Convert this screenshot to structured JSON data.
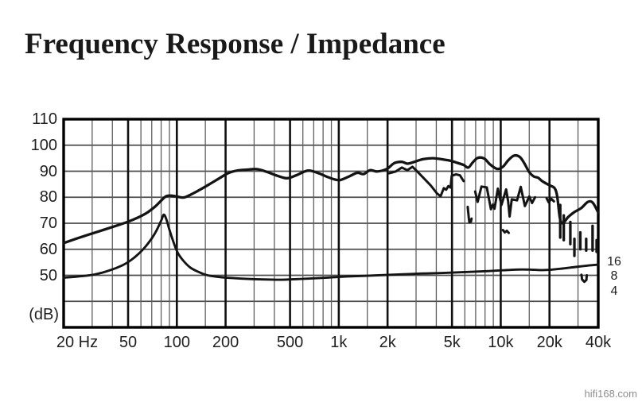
{
  "title": "Frequency Response / Impedance",
  "watermark": "hifi168.com",
  "chart_data": {
    "type": "line",
    "title": "Frequency Response / Impedance",
    "x_axis": {
      "scale": "log",
      "unit": "Hz",
      "min": 20,
      "max": 40000,
      "major_ticks": [
        {
          "value": 20,
          "label": "20 Hz"
        },
        {
          "value": 50,
          "label": "50"
        },
        {
          "value": 100,
          "label": "100"
        },
        {
          "value": 200,
          "label": "200"
        },
        {
          "value": 500,
          "label": "500"
        },
        {
          "value": 1000,
          "label": "1k"
        },
        {
          "value": 2000,
          "label": "2k"
        },
        {
          "value": 5000,
          "label": "5k"
        },
        {
          "value": 10000,
          "label": "10k"
        },
        {
          "value": 20000,
          "label": "20k"
        },
        {
          "value": 40000,
          "label": "40k"
        }
      ],
      "minor_gridlines": [
        30,
        40,
        60,
        70,
        80,
        90,
        150,
        300,
        400,
        600,
        700,
        800,
        900,
        1500,
        3000,
        4000,
        6000,
        7000,
        8000,
        9000,
        15000,
        30000
      ]
    },
    "y_axis": {
      "label": "(dB)",
      "min": 30,
      "max": 110,
      "gridline_step": 10,
      "labeled_ticks": [
        110,
        100,
        90,
        80,
        70,
        60,
        50
      ]
    },
    "y2_axis": {
      "unit": "ohms",
      "ticks": [
        {
          "label": "16",
          "db_equiv": 55.0
        },
        {
          "label": "8",
          "db_equiv": 49.4
        },
        {
          "label": "4",
          "db_equiv": 43.8
        }
      ]
    },
    "series": [
      {
        "name": "frequency_response",
        "style": "smooth",
        "points": [
          [
            20,
            62.4
          ],
          [
            24,
            64.1
          ],
          [
            29,
            65.8
          ],
          [
            35,
            67.4
          ],
          [
            42,
            69.0
          ],
          [
            50,
            70.6
          ],
          [
            58,
            72.3
          ],
          [
            66,
            74.2
          ],
          [
            74,
            76.6
          ],
          [
            80,
            78.7
          ],
          [
            86,
            80.4
          ],
          [
            93,
            80.6
          ],
          [
            101,
            80.2
          ],
          [
            110,
            79.9
          ],
          [
            120,
            80.8
          ],
          [
            138,
            82.8
          ],
          [
            158,
            84.9
          ],
          [
            182,
            87.2
          ],
          [
            208,
            89.3
          ],
          [
            238,
            90.3
          ],
          [
            272,
            90.6
          ],
          [
            312,
            90.8
          ],
          [
            358,
            89.8
          ],
          [
            420,
            88.2
          ],
          [
            480,
            87.3
          ],
          [
            545,
            88.4
          ],
          [
            615,
            89.9
          ],
          [
            665,
            90.2
          ],
          [
            760,
            89.1
          ],
          [
            860,
            87.7
          ],
          [
            950,
            86.8
          ],
          [
            1020,
            86.6
          ],
          [
            1150,
            87.9
          ],
          [
            1300,
            89.4
          ],
          [
            1420,
            88.9
          ],
          [
            1560,
            90.4
          ],
          [
            1700,
            89.9
          ],
          [
            1850,
            90.2
          ],
          [
            2000,
            91.0
          ],
          [
            2200,
            93.1
          ],
          [
            2450,
            93.6
          ],
          [
            2650,
            92.9
          ],
          [
            2900,
            93.5
          ],
          [
            3300,
            94.6
          ],
          [
            3800,
            95.0
          ],
          [
            4300,
            94.6
          ],
          [
            4900,
            94.0
          ],
          [
            5400,
            93.2
          ],
          [
            5900,
            92.4
          ],
          [
            6300,
            91.4
          ],
          [
            6700,
            93.3
          ],
          [
            7200,
            95.1
          ],
          [
            7900,
            94.9
          ],
          [
            8600,
            92.6
          ],
          [
            9500,
            90.9
          ],
          [
            10300,
            91.7
          ],
          [
            11200,
            94.4
          ],
          [
            12100,
            96.0
          ],
          [
            13100,
            95.5
          ],
          [
            14000,
            93.0
          ],
          [
            15000,
            89.6
          ],
          [
            16000,
            88.0
          ],
          [
            17000,
            87.5
          ],
          [
            18000,
            86.2
          ],
          [
            19200,
            85.2
          ],
          [
            20500,
            84.3
          ],
          [
            21500,
            83.5
          ],
          [
            22300,
            80.5
          ],
          [
            23200,
            72.0
          ],
          [
            24200,
            70.0
          ],
          [
            26000,
            72.3
          ],
          [
            28500,
            74.3
          ],
          [
            31500,
            75.9
          ],
          [
            34500,
            78.2
          ],
          [
            37000,
            77.9
          ],
          [
            40000,
            74.1
          ]
        ]
      },
      {
        "name": "response_secondary",
        "style": "jagged",
        "segments": [
          [
            [
              2050,
              89.2
            ],
            [
              2250,
              89.9
            ],
            [
              2450,
              91.4
            ],
            [
              2650,
              90.4
            ],
            [
              2850,
              91.7
            ],
            [
              3050,
              89.9
            ],
            [
              3350,
              87.3
            ],
            [
              3700,
              84.5
            ],
            [
              4050,
              81.4
            ],
            [
              4250,
              80.4
            ],
            [
              4450,
              83.5
            ],
            [
              4600,
              82.9
            ],
            [
              4750,
              84.3
            ],
            [
              4900,
              83.7
            ],
            [
              4980,
              88.2
            ],
            [
              5300,
              88.8
            ],
            [
              5600,
              88.4
            ],
            [
              5800,
              86.9
            ],
            [
              5900,
              86.2
            ]
          ],
          [
            [
              6250,
              76.3
            ],
            [
              6350,
              72.0
            ],
            [
              6400,
              70.4
            ],
            [
              6550,
              70.6
            ],
            [
              6600,
              71.8
            ]
          ],
          [
            [
              6950,
              82.2
            ],
            [
              7200,
              78.2
            ],
            [
              7600,
              84.1
            ],
            [
              8200,
              83.8
            ],
            [
              8700,
              75.4
            ],
            [
              8950,
              77.2
            ],
            [
              9150,
              75.6
            ],
            [
              9600,
              83.3
            ],
            [
              10100,
              77.0
            ],
            [
              10800,
              83.0
            ],
            [
              11100,
              78.5
            ],
            [
              11350,
              72.6
            ],
            [
              11700,
              79.2
            ],
            [
              12600,
              78.8
            ],
            [
              13300,
              84.0
            ],
            [
              14100,
              76.6
            ],
            [
              15000,
              80.3
            ],
            [
              15600,
              77.8
            ],
            [
              16300,
              80.0
            ]
          ],
          [
            [
              19200,
              79.6
            ],
            [
              19800,
              78.0
            ],
            [
              20500,
              79.4
            ],
            [
              21300,
              78.4
            ]
          ],
          [
            [
              10300,
              67.4
            ],
            [
              10600,
              66.5
            ],
            [
              10900,
              67.1
            ],
            [
              11200,
              66.3
            ]
          ],
          [
            [
              31500,
              50.2
            ],
            [
              31800,
              48.4
            ],
            [
              32800,
              47.5
            ],
            [
              33800,
              48.2
            ],
            [
              34000,
              50.0
            ]
          ]
        ]
      },
      {
        "name": "response_dropout_dashes",
        "style": "dashes",
        "dashes": [
          [
            23300,
            77.0,
            64.5
          ],
          [
            24500,
            73.0,
            63.5
          ],
          [
            26900,
            70.5,
            62.0
          ],
          [
            28500,
            64.0,
            57.5
          ],
          [
            31000,
            66.5,
            60.0
          ],
          [
            33700,
            64.0,
            59.5
          ],
          [
            36900,
            69.0,
            59.5
          ],
          [
            39100,
            63.5,
            59.0
          ]
        ]
      },
      {
        "name": "impedance",
        "style": "smooth",
        "points": [
          [
            20,
            49.1
          ],
          [
            25,
            49.6
          ],
          [
            31,
            50.3
          ],
          [
            39,
            52.0
          ],
          [
            46,
            53.8
          ],
          [
            52,
            55.8
          ],
          [
            58,
            58.2
          ],
          [
            64,
            61.0
          ],
          [
            70,
            64.2
          ],
          [
            75,
            67.3
          ],
          [
            80,
            71.0
          ],
          [
            83,
            73.3
          ],
          [
            86,
            71.6
          ],
          [
            90,
            67.5
          ],
          [
            95,
            63.0
          ],
          [
            101,
            58.8
          ],
          [
            109,
            55.8
          ],
          [
            121,
            53.0
          ],
          [
            135,
            51.4
          ],
          [
            155,
            50.0
          ],
          [
            185,
            49.3
          ],
          [
            225,
            48.9
          ],
          [
            275,
            48.6
          ],
          [
            340,
            48.4
          ],
          [
            430,
            48.3
          ],
          [
            540,
            48.5
          ],
          [
            680,
            48.8
          ],
          [
            850,
            49.1
          ],
          [
            1100,
            49.5
          ],
          [
            1450,
            49.8
          ],
          [
            1900,
            50.1
          ],
          [
            2500,
            50.4
          ],
          [
            3300,
            50.7
          ],
          [
            4400,
            50.9
          ],
          [
            5800,
            51.2
          ],
          [
            7600,
            51.5
          ],
          [
            10000,
            51.9
          ],
          [
            12500,
            52.2
          ],
          [
            15000,
            52.2
          ],
          [
            17500,
            52.0
          ],
          [
            20000,
            52.1
          ],
          [
            24000,
            52.6
          ],
          [
            29000,
            53.2
          ],
          [
            34000,
            53.7
          ],
          [
            40000,
            54.1
          ]
        ]
      }
    ]
  }
}
